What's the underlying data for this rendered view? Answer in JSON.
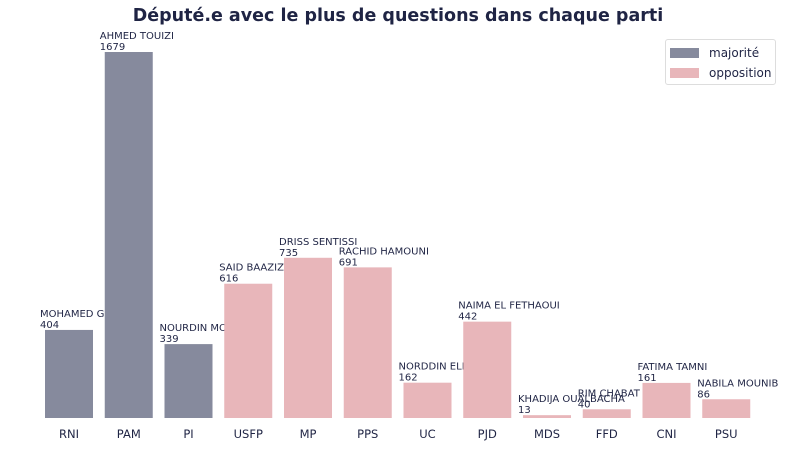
{
  "chart_data": {
    "type": "bar",
    "title": "Député.e avec le plus de questions dans chaque parti",
    "xlabel": "",
    "ylabel": "",
    "ylim": [
      0,
      1700
    ],
    "grid": false,
    "legend_position": "top-right",
    "categories": [
      "RNI",
      "PAM",
      "PI",
      "USFP",
      "MP",
      "PPS",
      "UC",
      "PJD",
      "MDS",
      "FFD",
      "CNI",
      "PSU"
    ],
    "values": [
      404,
      1679,
      339,
      616,
      735,
      691,
      162,
      442,
      13,
      40,
      161,
      86
    ],
    "labels": [
      "MOHAMED GHAYATE",
      "AHMED TOUIZI",
      "NOURDIN MOUDIAN",
      "SAID BAAZIZ",
      "DRISS SENTISSI",
      "RACHID HAMOUNI",
      "NORDDIN ELHROUCHI",
      "NAIMA EL FETHAOUI",
      "KHADIJA OUALBACHA",
      "RIM CHABAT",
      "FATIMA TAMNI",
      "NABILA MOUNIB"
    ],
    "groups": [
      "majorité",
      "majorité",
      "majorité",
      "opposition",
      "opposition",
      "opposition",
      "opposition",
      "opposition",
      "opposition",
      "opposition",
      "opposition",
      "opposition"
    ],
    "legend": [
      {
        "name": "majorité",
        "color": "#868a9d"
      },
      {
        "name": "opposition",
        "color": "#e8b6ba"
      }
    ]
  }
}
